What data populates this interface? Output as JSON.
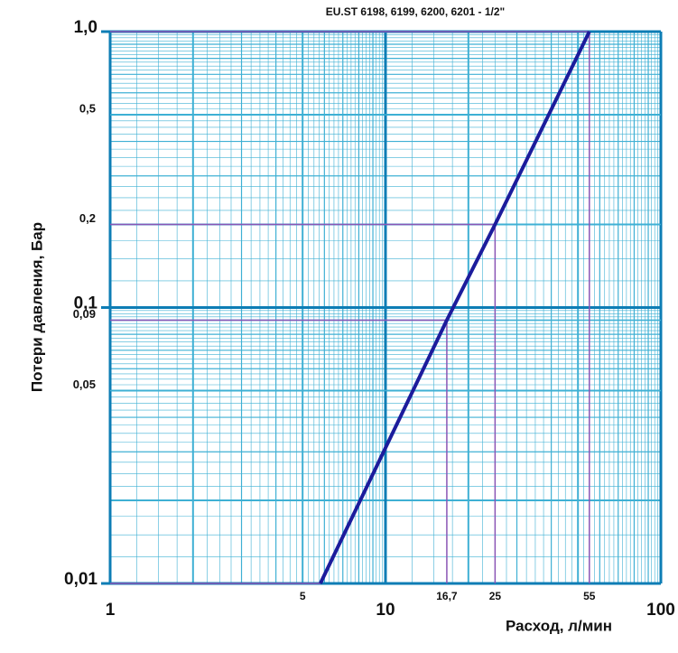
{
  "chart_data": {
    "type": "line",
    "title": "EU.ST 6198, 6199, 6200, 6201 - 1/2\"",
    "x_label": "Расход, л/мин",
    "y_label": "Потери давления, Бар",
    "log_x": true,
    "log_y": true,
    "grid": true,
    "xlim": [
      1,
      100
    ],
    "ylim": [
      0.01,
      1
    ],
    "xticks": [
      1,
      10,
      100
    ],
    "x_annotations": [
      {
        "value": 5,
        "label": "5"
      },
      {
        "value": 16.7,
        "label": "16,7"
      },
      {
        "value": 25,
        "label": "25"
      },
      {
        "value": 55,
        "label": "55"
      }
    ],
    "yticks": [
      {
        "value": 1,
        "label": "1,0"
      },
      {
        "value": 0.5,
        "label": "0,5"
      },
      {
        "value": 0.2,
        "label": "0,2"
      },
      {
        "value": 0.1,
        "label": "0,1"
      },
      {
        "value": 0.09,
        "label": "0,09"
      },
      {
        "value": 0.05,
        "label": "0,05"
      },
      {
        "value": 0.01,
        "label": "0,01"
      }
    ],
    "series": [
      {
        "color": "#1c1c9c",
        "x": [
          5.8,
          16.7,
          25,
          55
        ],
        "values": [
          0.01,
          0.09,
          0.2,
          1
        ]
      }
    ],
    "guide_color": "#8a55b5"
  }
}
